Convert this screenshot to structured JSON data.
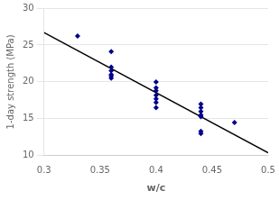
{
  "chart_data": {
    "type": "scatter",
    "xlabel": "w/c",
    "ylabel": "1-day strength (MPa)",
    "xlim": [
      0.3,
      0.5
    ],
    "xticks": [
      0.3,
      0.35,
      0.4,
      0.45,
      0.5
    ],
    "ylim": [
      10,
      30
    ],
    "yticks": [
      10,
      15,
      20,
      25,
      30
    ],
    "grid": "y",
    "series": [
      {
        "type": "scatter",
        "marker": "diamond",
        "color": "#00008B",
        "x": [
          0.33,
          0.36,
          0.36,
          0.36,
          0.36,
          0.36,
          0.36,
          0.4,
          0.4,
          0.4,
          0.4,
          0.4,
          0.4,
          0.4,
          0.44,
          0.44,
          0.44,
          0.44,
          0.44,
          0.44,
          0.44,
          0.47
        ],
        "values": [
          26.2,
          24.1,
          22.0,
          21.5,
          21.0,
          20.8,
          20.5,
          20.0,
          19.2,
          18.8,
          18.2,
          17.7,
          17.2,
          16.5,
          17.0,
          16.5,
          16.0,
          15.5,
          15.3,
          13.3,
          13.0,
          14.5
        ]
      },
      {
        "type": "line",
        "line_style": "solid",
        "color": "#000000",
        "x": [
          0.3,
          0.5
        ],
        "values": [
          26.6949,
          10.4013
        ]
      }
    ]
  }
}
